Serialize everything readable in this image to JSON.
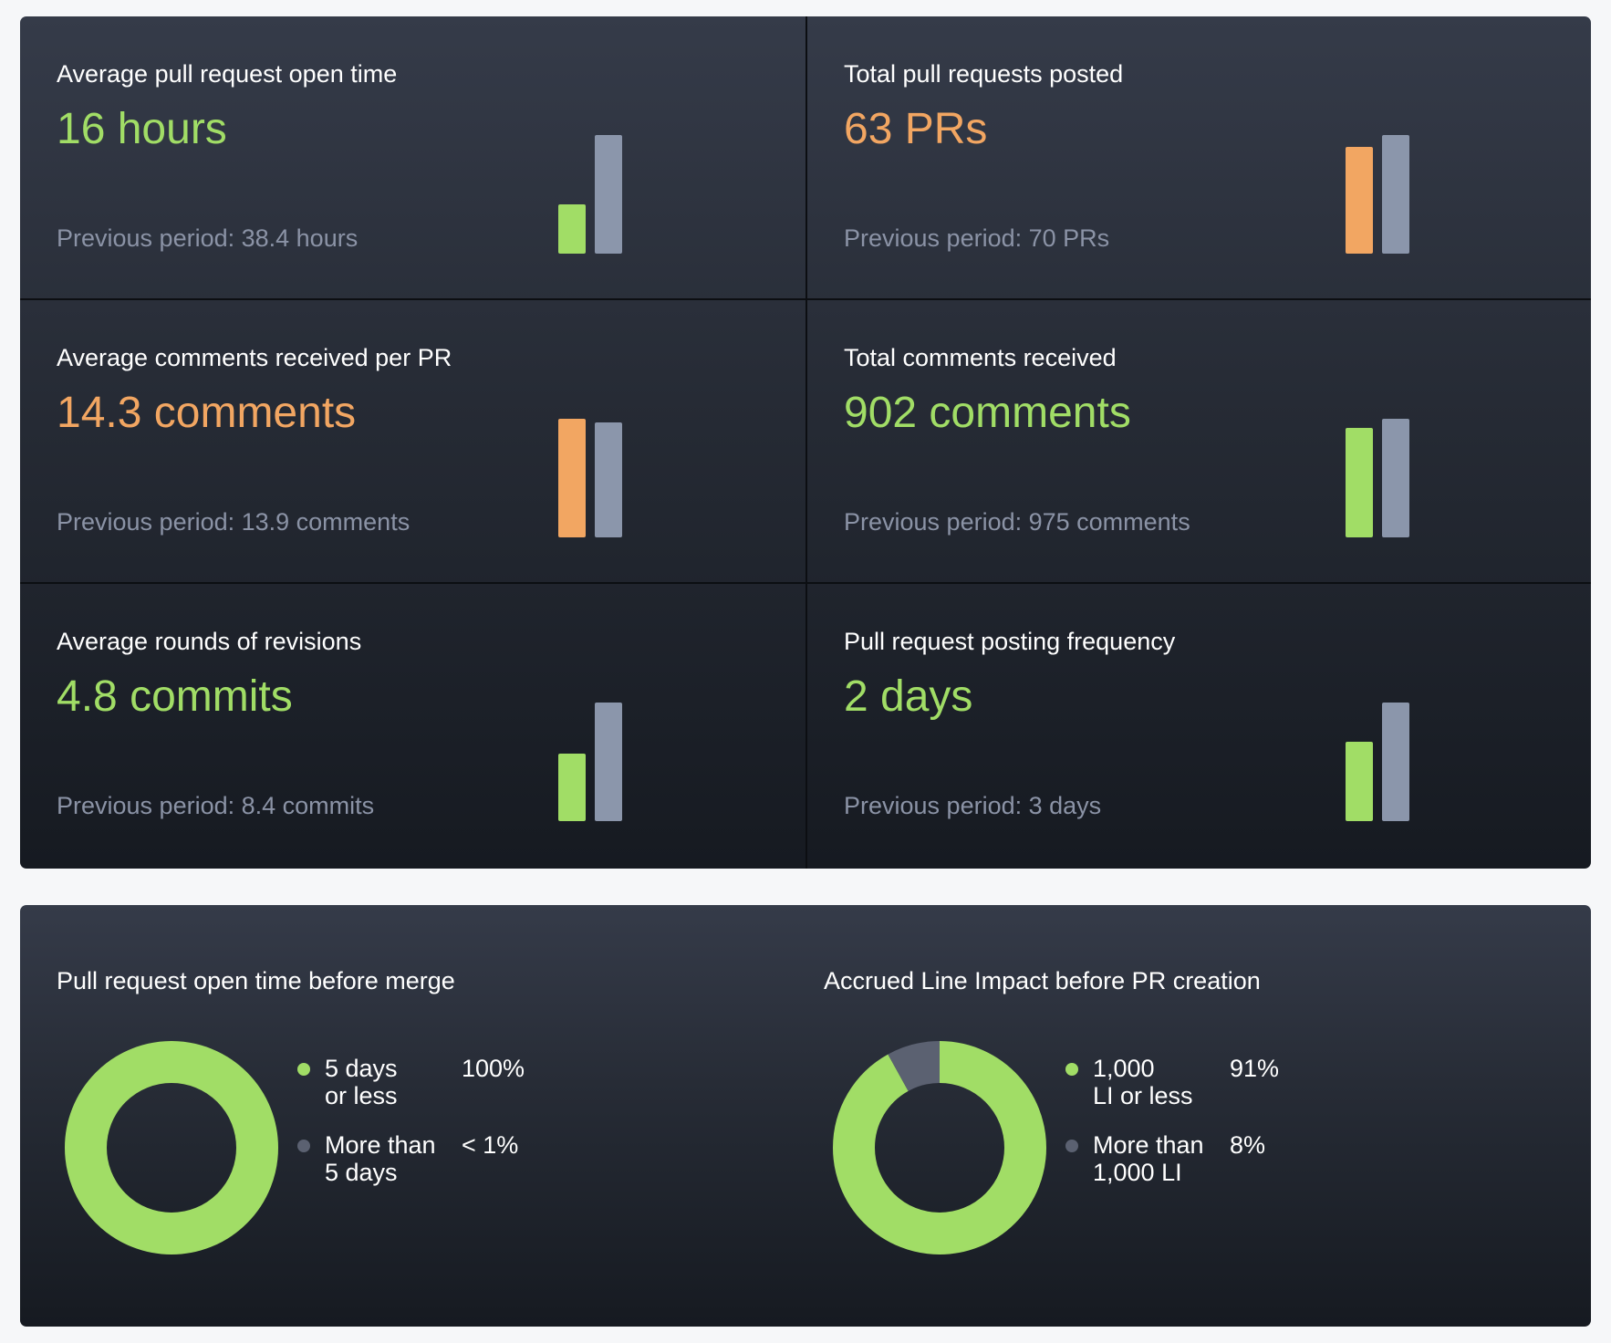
{
  "colors": {
    "good": "#a1dd66",
    "bad": "#f2a662",
    "previous": "#8b96ab",
    "muted": "#5b6171",
    "text": "#ffffff",
    "subtext": "#8b93a6"
  },
  "metrics": [
    {
      "title": "Average pull request open time",
      "value": "16 hours",
      "status": "good",
      "previous": "Previous period: 38.4 hours",
      "current_num": 16,
      "previous_num": 38.4
    },
    {
      "title": "Total pull requests posted",
      "value": "63 PRs",
      "status": "bad",
      "previous": "Previous period: 70 PRs",
      "current_num": 63,
      "previous_num": 70
    },
    {
      "title": "Average comments received per PR",
      "value": "14.3 comments",
      "status": "bad",
      "previous": "Previous period: 13.9 comments",
      "current_num": 14.3,
      "previous_num": 13.9
    },
    {
      "title": "Total comments received",
      "value": "902 comments",
      "status": "good",
      "previous": "Previous period: 975 comments",
      "current_num": 902,
      "previous_num": 975
    },
    {
      "title": "Average rounds of revisions",
      "value": "4.8 commits",
      "status": "good",
      "previous": "Previous period: 8.4 commits",
      "current_num": 4.8,
      "previous_num": 8.4
    },
    {
      "title": "Pull request posting frequency",
      "value": "2 days",
      "status": "good",
      "previous": "Previous period: 3 days",
      "current_num": 2,
      "previous_num": 3
    }
  ],
  "distributions": [
    {
      "title": "Pull request open time before merge",
      "chart_type": "donut",
      "segments": [
        {
          "label": "5 days\nor less",
          "pct": "100%",
          "fraction": 1.0,
          "color": "good"
        },
        {
          "label": "More than\n5 days",
          "pct": "< 1%",
          "fraction": 0.0,
          "color": "muted"
        }
      ]
    },
    {
      "title": "Accrued Line Impact before PR creation",
      "chart_type": "donut",
      "segments": [
        {
          "label": "1,000\nLI or less",
          "pct": "91%",
          "fraction": 0.91,
          "color": "good"
        },
        {
          "label": "More than\n1,000 LI",
          "pct": "8%",
          "fraction": 0.08,
          "color": "muted"
        }
      ]
    }
  ]
}
